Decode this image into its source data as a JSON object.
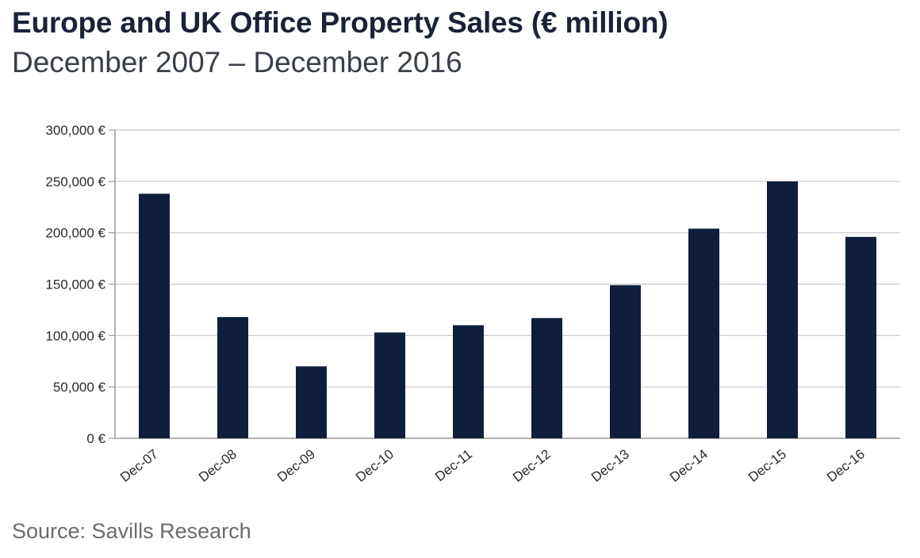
{
  "title": "Europe and UK Office Property Sales (€ million)",
  "subtitle": "December 2007 – December 2016",
  "source": "Source: Savills Research",
  "colors": {
    "bar": "#0f1e3a",
    "grid": "#c8c8c8",
    "axis": "#9a9a9a"
  },
  "chart_data": {
    "type": "bar",
    "categories": [
      "Dec-07",
      "Dec-08",
      "Dec-09",
      "Dec-10",
      "Dec-11",
      "Dec-12",
      "Dec-13",
      "Dec-14",
      "Dec-15",
      "Dec-16"
    ],
    "values": [
      238000,
      118000,
      70000,
      103000,
      110000,
      117000,
      149000,
      204000,
      250000,
      196000
    ],
    "ylim": [
      0,
      300000
    ],
    "yticks": [
      0,
      50000,
      100000,
      150000,
      200000,
      250000,
      300000
    ],
    "ytick_labels": [
      "0 €",
      "50,000 €",
      "100,000 €",
      "150,000 €",
      "200,000 €",
      "250,000 €",
      "300,000 €"
    ],
    "grid": true,
    "legend": "none"
  }
}
